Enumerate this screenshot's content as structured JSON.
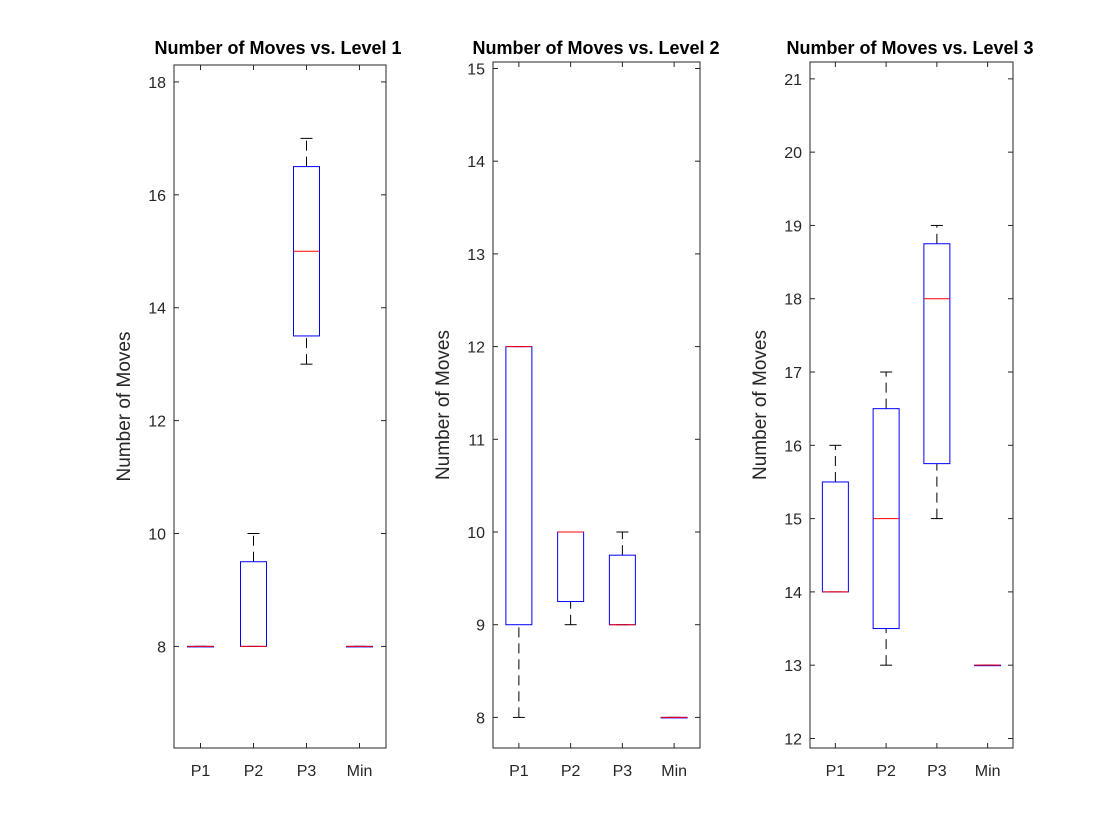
{
  "colors": {
    "box": "#0000ff",
    "median": "#ff0000",
    "whisker": "#000000",
    "axis": "#262626",
    "background": "#ffffff"
  },
  "chart_data": [
    {
      "type": "boxplot",
      "title": "Number of Moves vs. Level 1",
      "xlabel": "",
      "ylabel": "Number of Moves",
      "ylim": [
        6.2,
        18.3
      ],
      "yticks": [
        8,
        10,
        12,
        14,
        16,
        18
      ],
      "ytick_labels": [
        "8",
        "10",
        "12",
        "14",
        "16",
        "18"
      ],
      "grid": false,
      "categories": [
        "P1",
        "P2",
        "P3",
        "Min"
      ],
      "boxes": [
        {
          "min": 8,
          "q1": 8,
          "median": 8,
          "q3": 8,
          "max": 8
        },
        {
          "min": 8,
          "q1": 8,
          "median": 8,
          "q3": 9.5,
          "max": 10
        },
        {
          "min": 13,
          "q1": 13.5,
          "median": 15,
          "q3": 16.5,
          "max": 17
        },
        {
          "min": 8,
          "q1": 8,
          "median": 8,
          "q3": 8,
          "max": 8
        }
      ]
    },
    {
      "type": "boxplot",
      "title": "Number of Moves vs. Level 2",
      "xlabel": "",
      "ylabel": "Number of Moves",
      "ylim": [
        7.67,
        15.07
      ],
      "yticks": [
        8,
        9,
        10,
        11,
        12,
        13,
        14,
        15
      ],
      "ytick_labels": [
        "8",
        "9",
        "10",
        "11",
        "12",
        "13",
        "14",
        "15"
      ],
      "grid": false,
      "categories": [
        "P1",
        "P2",
        "P3",
        "Min"
      ],
      "boxes": [
        {
          "min": 8,
          "q1": 9,
          "median": 12,
          "q3": 12,
          "max": 12
        },
        {
          "min": 9,
          "q1": 9.25,
          "median": 10,
          "q3": 10,
          "max": 10
        },
        {
          "min": 9,
          "q1": 9,
          "median": 9,
          "q3": 9.75,
          "max": 10
        },
        {
          "min": 8,
          "q1": 8,
          "median": 8,
          "q3": 8,
          "max": 8
        }
      ]
    },
    {
      "type": "boxplot",
      "title": "Number of Moves vs. Level 3",
      "xlabel": "",
      "ylabel": "Number of Moves",
      "ylim": [
        11.87,
        21.23
      ],
      "yticks": [
        12,
        13,
        14,
        15,
        16,
        17,
        18,
        19,
        20,
        21
      ],
      "ytick_labels": [
        "12",
        "13",
        "14",
        "15",
        "16",
        "17",
        "18",
        "19",
        "20",
        "21"
      ],
      "grid": false,
      "categories": [
        "P1",
        "P2",
        "P3",
        "Min"
      ],
      "boxes": [
        {
          "min": 14,
          "q1": 14,
          "median": 14,
          "q3": 15.5,
          "max": 16
        },
        {
          "min": 13,
          "q1": 13.5,
          "median": 15,
          "q3": 16.5,
          "max": 17
        },
        {
          "min": 15,
          "q1": 15.75,
          "median": 18,
          "q3": 18.75,
          "max": 19
        },
        {
          "min": 13,
          "q1": 13,
          "median": 13,
          "q3": 13,
          "max": 13
        }
      ]
    }
  ]
}
